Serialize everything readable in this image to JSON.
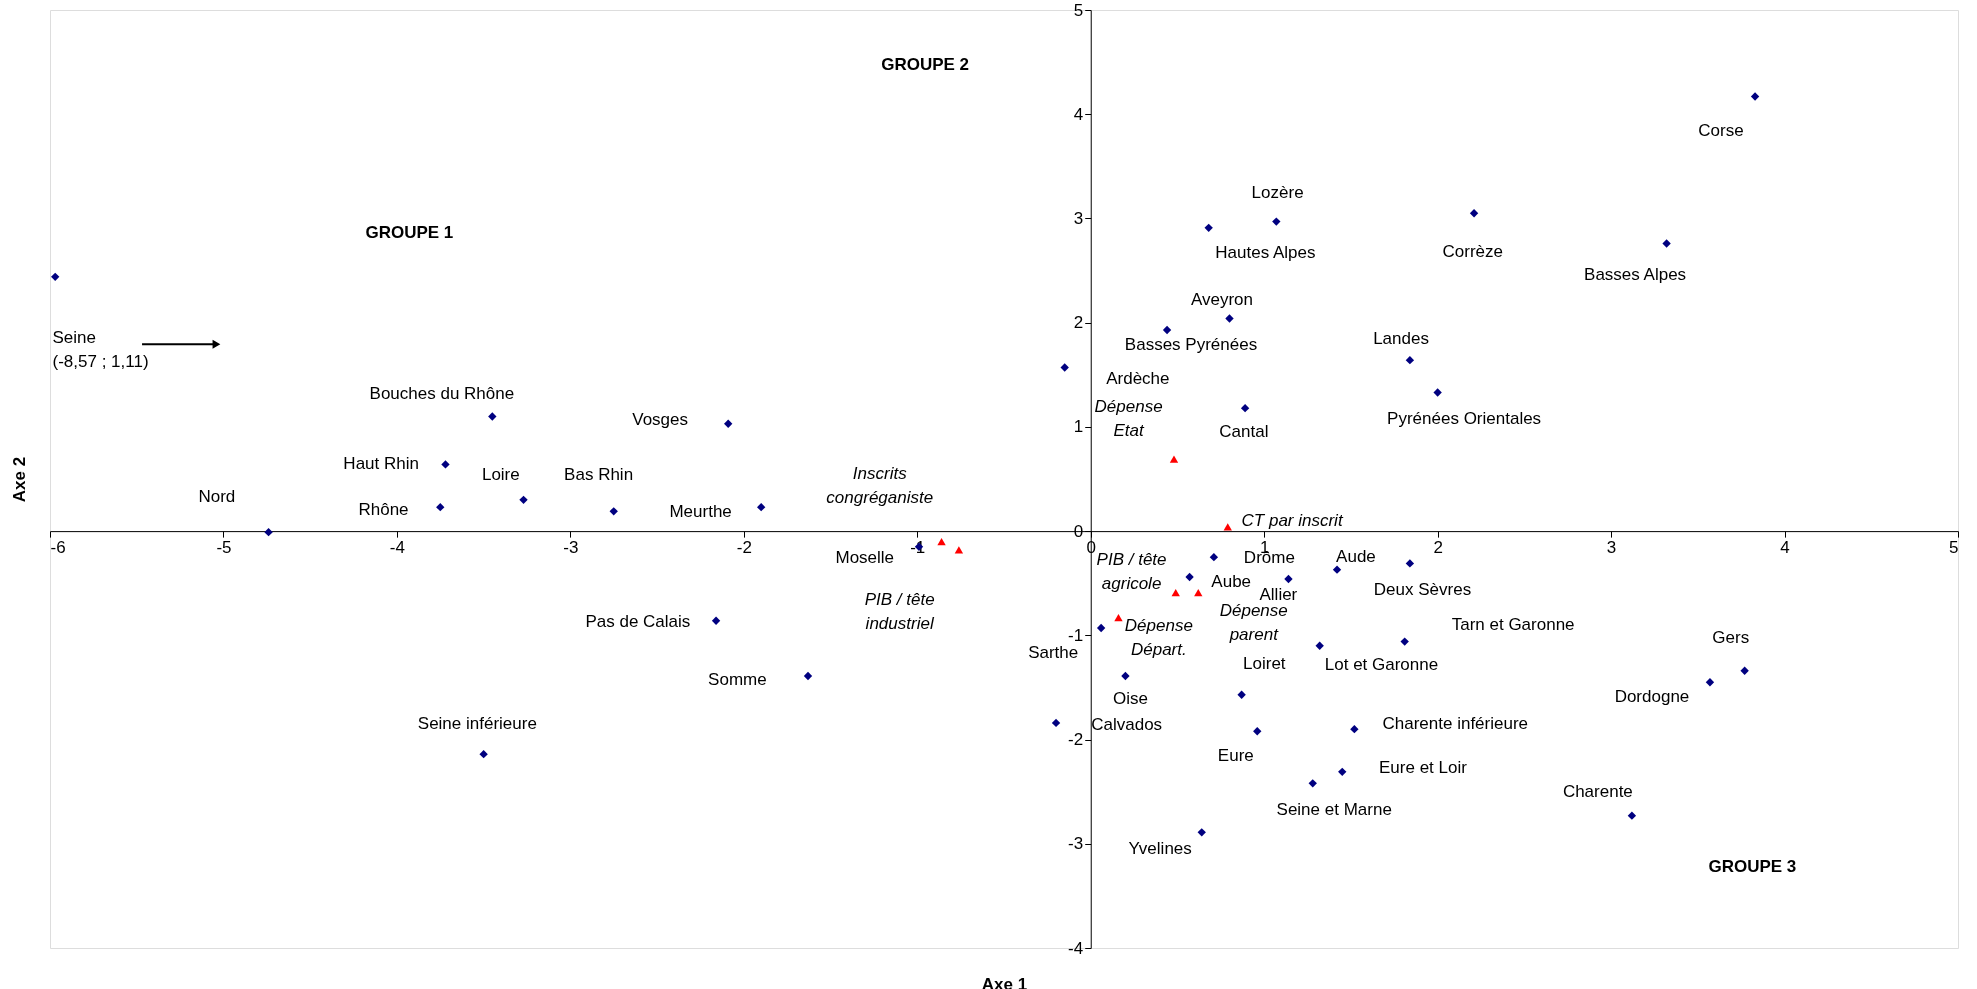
{
  "chart_data": {
    "type": "scatter",
    "xlabel": "Axe 1",
    "ylabel": "Axe 2",
    "xlim": [
      -6,
      5
    ],
    "ylim": [
      -4,
      5
    ],
    "xticks": [
      -6,
      -5,
      -4,
      -3,
      -2,
      -1,
      0,
      1,
      2,
      3,
      4,
      5
    ],
    "yticks": [
      -4,
      -3,
      -2,
      -1,
      0,
      1,
      2,
      3,
      4,
      5
    ],
    "grid": false,
    "marker": "diamond",
    "series": [
      {
        "color": "#000080",
        "x": [
          -5.97,
          -4.74,
          -3.45,
          -3.72,
          -3.75,
          -3.27,
          -2.75,
          -2.09,
          -1.9,
          -0.99,
          -2.16,
          -1.63,
          -3.5,
          3.83,
          1.07,
          0.68,
          2.21,
          3.32,
          0.8,
          0.44,
          -0.15,
          1.84,
          2.0,
          0.89,
          0.71,
          0.57,
          1.14,
          1.42,
          1.84,
          0.06,
          0.2,
          0.87,
          1.32,
          1.81,
          -0.2,
          0.96,
          1.52,
          1.45,
          1.28,
          0.64,
          3.77,
          3.57,
          3.12
        ],
        "values": [
          2.44,
          -0.01,
          1.1,
          0.64,
          0.23,
          0.3,
          0.19,
          1.03,
          0.23,
          -0.15,
          -0.86,
          -1.39,
          -2.14,
          4.17,
          2.97,
          2.91,
          3.05,
          2.76,
          2.04,
          1.93,
          1.57,
          1.64,
          1.33,
          1.18,
          -0.25,
          -0.44,
          -0.46,
          -0.37,
          -0.31,
          -0.93,
          -1.39,
          -1.57,
          -1.1,
          -1.06,
          -1.84,
          -1.92,
          -1.9,
          -2.31,
          -2.42,
          -2.89,
          -1.34,
          -1.45,
          -2.73
        ]
      },
      {
        "color": "#ff0000",
        "marker": "triangle",
        "x": [
          -0.86,
          -0.76,
          0.48,
          0.79,
          0.49,
          0.62,
          0.16
        ],
        "values": [
          -0.1,
          -0.18,
          0.69,
          0.04,
          -0.59,
          -0.59,
          -0.83
        ]
      }
    ],
    "annotations": [
      "Seine\n(-8,57 ; 1,11)",
      {
        "text": "Nord",
        "x": -4.74,
        "y": -0.01
      },
      {
        "text": "Bouches du Rhône",
        "x": -3.45,
        "y": 1.1
      },
      {
        "text": "Haut Rhin",
        "x": -3.72,
        "y": 0.64
      },
      {
        "text": "Rhône",
        "x": -3.75,
        "y": 0.23
      },
      {
        "text": "Loire",
        "x": -3.27,
        "y": 0.3
      },
      {
        "text": "Bas Rhin",
        "x": -2.75,
        "y": 0.19
      },
      {
        "text": "Vosges",
        "x": -2.09,
        "y": 1.03
      },
      {
        "text": "Meurthe",
        "x": -1.9,
        "y": 0.23
      },
      {
        "text": "Moselle",
        "x": -0.99,
        "y": -0.15
      },
      {
        "text": "Pas de Calais",
        "x": -2.16,
        "y": -0.86
      },
      {
        "text": "Somme",
        "x": -1.63,
        "y": -1.39
      },
      {
        "text": "Seine inférieure",
        "x": -3.5,
        "y": -2.14
      },
      {
        "text": "Corse",
        "x": 3.83,
        "y": 4.17
      },
      {
        "text": "Lozère",
        "x": 1.07,
        "y": 2.97
      },
      {
        "text": "Hautes Alpes",
        "x": 0.68,
        "y": 2.91
      },
      {
        "text": "Corrèze",
        "x": 2.21,
        "y": 3.05
      },
      {
        "text": "Basses Alpes",
        "x": 3.32,
        "y": 2.76
      },
      {
        "text": "Aveyron",
        "x": 0.8,
        "y": 2.04
      },
      {
        "text": "Basses Pyrénées",
        "x": 0.44,
        "y": 1.93
      },
      {
        "text": "Ardèche",
        "x": -0.15,
        "y": 1.57
      },
      {
        "text": "Landes",
        "x": 1.84,
        "y": 1.64
      },
      {
        "text": "Pyrénées Orientales",
        "x": 2.0,
        "y": 1.33
      },
      {
        "text": "Cantal",
        "x": 0.89,
        "y": 1.18
      },
      {
        "text": "Drôme",
        "x": 0.71,
        "y": -0.25
      },
      {
        "text": "Aube",
        "x": 0.57,
        "y": -0.44
      },
      {
        "text": "Allier",
        "x": 1.14,
        "y": -0.46
      },
      {
        "text": "Aude",
        "x": 1.42,
        "y": -0.37
      },
      {
        "text": "Deux Sèvres",
        "x": 1.84,
        "y": -0.31
      },
      {
        "text": "Sarthe",
        "x": 0.06,
        "y": -0.93
      },
      {
        "text": "Oise",
        "x": 0.2,
        "y": -1.39
      },
      {
        "text": "Loiret",
        "x": 0.87,
        "y": -1.57
      },
      {
        "text": "Lot et Garonne",
        "x": 1.32,
        "y": -1.1
      },
      {
        "text": "Tarn et Garonne",
        "x": 1.81,
        "y": -1.06
      },
      {
        "text": "Calvados",
        "x": -0.2,
        "y": -1.84
      },
      {
        "text": "Eure",
        "x": 0.96,
        "y": -1.92
      },
      {
        "text": "Charente inférieure",
        "x": 1.52,
        "y": -1.9
      },
      {
        "text": "Eure et Loir",
        "x": 1.45,
        "y": -2.31
      },
      {
        "text": "Seine et Marne",
        "x": 1.28,
        "y": -2.42
      },
      {
        "text": "Yvelines",
        "x": 0.64,
        "y": -2.89
      },
      {
        "text": "Gers",
        "x": 3.77,
        "y": -1.34
      },
      {
        "text": "Dordogne",
        "x": 3.57,
        "y": -1.45
      },
      {
        "text": "Charente",
        "x": 3.12,
        "y": -2.73
      },
      {
        "text": "Inscrits\ncongréganiste",
        "x": -0.86,
        "y": -0.1
      },
      {
        "text": "PIB / tête\nindustriel",
        "x": -0.76,
        "y": -0.18
      },
      {
        "text": "Dépense\nEtat",
        "x": 0.48,
        "y": 0.69
      },
      {
        "text": "CT par inscrit",
        "x": 0.79,
        "y": 0.04
      },
      {
        "text": "PIB / tête\nagricole",
        "x": 0.49,
        "y": -0.59
      },
      {
        "text": "Dépense\nparent",
        "x": 0.62,
        "y": -0.59
      },
      {
        "text": "Dépense\nDépart.",
        "x": 0.16,
        "y": -0.83
      },
      "GROUPE 1",
      "GROUPE 2",
      "GROUPE 3"
    ]
  }
}
